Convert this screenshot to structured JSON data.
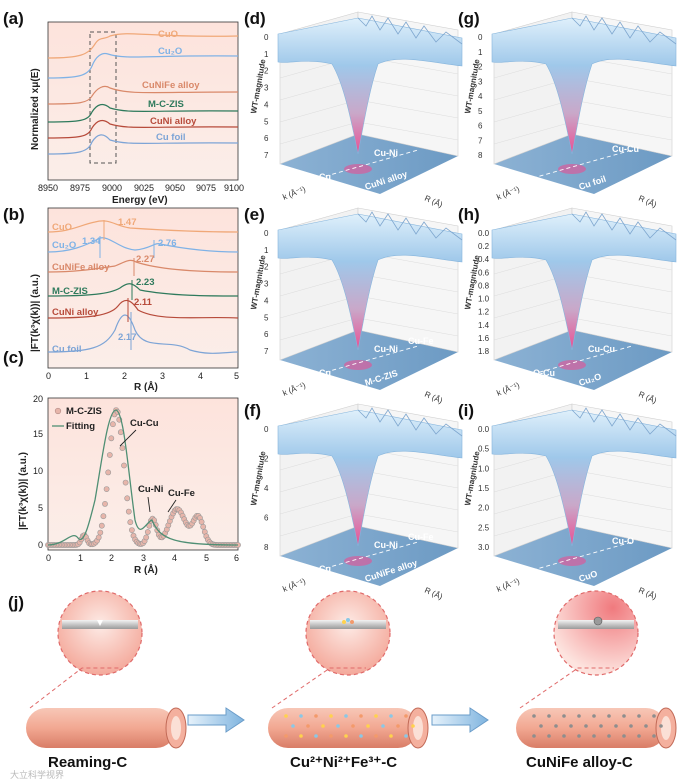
{
  "panels": {
    "a": {
      "label": "(a)",
      "ylabel": "Normalized xμ(E)",
      "xlabel": "Energy (eV)",
      "xticks": [
        "8950",
        "8975",
        "9000",
        "9025",
        "9050",
        "9075",
        "9100"
      ],
      "curves": [
        {
          "name": "CuO",
          "color": "#f0a878"
        },
        {
          "name": "Cu₂O",
          "color": "#7fb2e6"
        },
        {
          "name": "CuNiFe alloy",
          "color": "#d9896a"
        },
        {
          "name": "M-C-ZIS",
          "color": "#2e7a5c"
        },
        {
          "name": "CuNi alloy",
          "color": "#b74a3a"
        },
        {
          "name": "Cu foil",
          "color": "#7da4d6"
        }
      ]
    },
    "b": {
      "label": "(b)",
      "ylabel": "|FT(k³χ(k))| (a.u.)",
      "xlabel": "R (Å)",
      "xticks": [
        "0",
        "1",
        "2",
        "3",
        "4",
        "5"
      ],
      "curves": [
        {
          "name": "CuO",
          "color": "#f0a878",
          "peak": "1.47"
        },
        {
          "name": "Cu₂O",
          "color": "#7fb2e6",
          "peak": "1.34",
          "peak2": "2.76"
        },
        {
          "name": "CuNiFe alloy",
          "color": "#d9896a",
          "peak": "2.27"
        },
        {
          "name": "M-C-ZIS",
          "color": "#2e7a5c",
          "peak": "2.23"
        },
        {
          "name": "CuNi alloy",
          "color": "#b74a3a",
          "peak": "2.11"
        },
        {
          "name": "Cu foil",
          "color": "#7da4d6",
          "peak": "2.17"
        }
      ]
    },
    "c": {
      "label": "(c)",
      "ylabel": "|FT(k³χ(k))| (a.u.)",
      "xlabel": "R (Å)",
      "xticks": [
        "0",
        "1",
        "2",
        "3",
        "4",
        "5",
        "6"
      ],
      "yticks": [
        "0",
        "5",
        "10",
        "15",
        "20"
      ],
      "legend": [
        "M-C-ZIS",
        "Fitting"
      ],
      "annotations": [
        "Cu-Cu",
        "Cu-Ni",
        "Cu-Fe"
      ]
    },
    "wt": [
      {
        "id": "d",
        "label": "(d)",
        "bonds": [
          "Cu-Cu",
          "Cu-Ni"
        ],
        "sample": "CuNi alloy",
        "zticks": [
          "0",
          "1",
          "2",
          "3",
          "4",
          "5",
          "6",
          "7"
        ]
      },
      {
        "id": "e",
        "label": "(e)",
        "bonds": [
          "Cu-Cu",
          "Cu-Ni",
          "Cu-Fe"
        ],
        "sample": "M-C-ZIS",
        "zticks": [
          "0",
          "1",
          "2",
          "3",
          "4",
          "5",
          "6",
          "7"
        ]
      },
      {
        "id": "f",
        "label": "(f)",
        "bonds": [
          "Cu-Cu",
          "Cu-Ni",
          "Cu-Fe"
        ],
        "sample": "CuNiFe alloy",
        "zticks": [
          "0",
          "2",
          "4",
          "6",
          "8"
        ]
      },
      {
        "id": "g",
        "label": "(g)",
        "bonds": [
          "Cu-Cu"
        ],
        "sample": "Cu foil",
        "zticks": [
          "0",
          "1",
          "2",
          "3",
          "4",
          "5",
          "6",
          "7",
          "8"
        ]
      },
      {
        "id": "h",
        "label": "(h)",
        "bonds": [
          "Cu-O-Cu",
          "Cu-Cu"
        ],
        "sample": "Cu₂O",
        "zticks": [
          "0.0",
          "0.2",
          "0.4",
          "0.6",
          "0.8",
          "1.0",
          "1.2",
          "1.4",
          "1.6",
          "1.8"
        ]
      },
      {
        "id": "i",
        "label": "(i)",
        "bonds": [
          "Cu-O"
        ],
        "sample": "CuO",
        "zticks": [
          "0.0",
          "0.5",
          "1.0",
          "1.5",
          "2.0",
          "2.5",
          "3.0"
        ]
      }
    ],
    "wt_zlabel": "WT-magnitude",
    "wt_xlabel": "k (Å⁻¹)",
    "wt_ylabel": "R (Å)",
    "j": {
      "label": "(j)",
      "stages": [
        "Reaming-C",
        "Cu²⁺Ni²⁺Fe³⁺-C",
        "CuNiFe alloy-C"
      ]
    }
  },
  "watermark": "大立科学视界"
}
